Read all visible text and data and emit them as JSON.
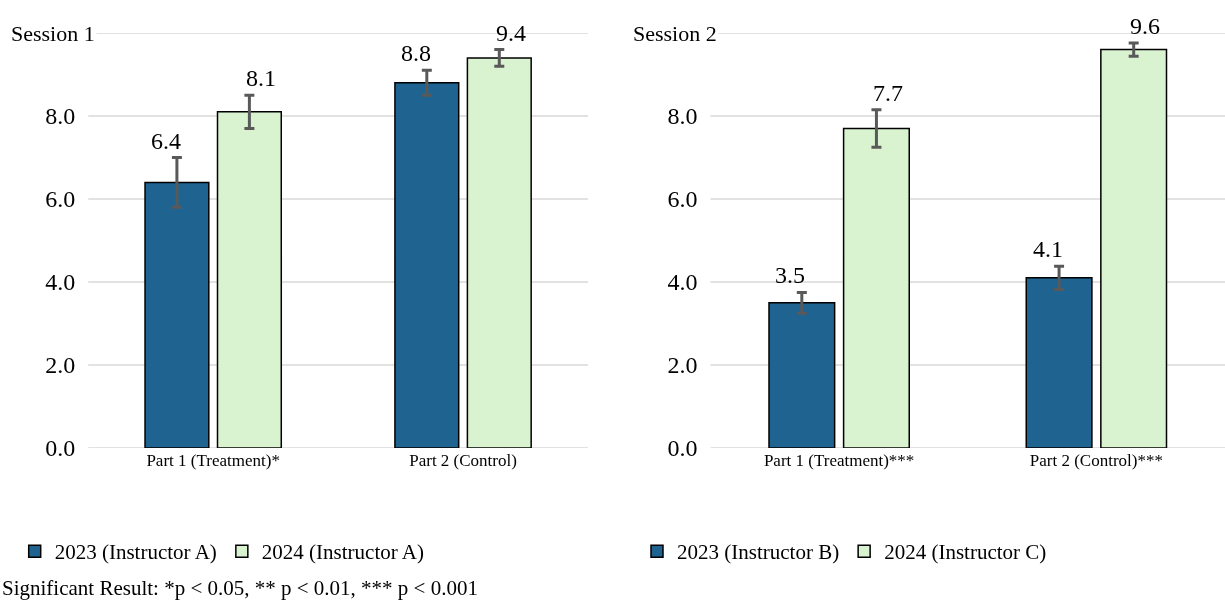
{
  "chart_data": [
    {
      "type": "bar",
      "title": "Session 1",
      "categories": [
        "Part 1 (Treatment)*",
        "Part 2 (Control)"
      ],
      "series": [
        {
          "name": "2023 (Instructor A)",
          "color": "#1f6391",
          "values": [
            6.4,
            8.8
          ],
          "errors": [
            0.6,
            0.3
          ]
        },
        {
          "name": "2024 (Instructor A)",
          "color": "#d9f2d0",
          "values": [
            8.1,
            9.4
          ],
          "errors": [
            0.4,
            0.2
          ]
        }
      ],
      "ylim": [
        0,
        10
      ],
      "yticks": [
        {
          "value": 0,
          "label": "0.0"
        },
        {
          "value": 2,
          "label": "2.0"
        },
        {
          "value": 4,
          "label": "4.0"
        },
        {
          "value": 6,
          "label": "6.0"
        },
        {
          "value": 8,
          "label": "8.0"
        },
        {
          "value": 10,
          "label": null
        }
      ],
      "grid": "y",
      "legend": "bottom",
      "data_labels": true,
      "annotations": [
        "Significant Result: *p < 0.05, ** p < 0.01, *** p < 0.001"
      ]
    },
    {
      "type": "bar",
      "title": "Session 2",
      "categories": [
        "Part 1 (Treatment)***",
        "Part 2 (Control)***"
      ],
      "series": [
        {
          "name": "2023 (Instructor B)",
          "color": "#1f6391",
          "values": [
            3.5,
            4.1
          ],
          "errors": [
            0.25,
            0.28
          ]
        },
        {
          "name": "2024 (Instructor C)",
          "color": "#d9f2d0",
          "values": [
            7.7,
            9.6
          ],
          "errors": [
            0.45,
            0.16
          ]
        }
      ],
      "ylim": [
        0,
        10
      ],
      "yticks": [
        {
          "value": 0,
          "label": "0.0"
        },
        {
          "value": 2,
          "label": "2.0"
        },
        {
          "value": 4,
          "label": "4.0"
        },
        {
          "value": 6,
          "label": "6.0"
        },
        {
          "value": 8,
          "label": "8.0"
        },
        {
          "value": 10,
          "label": null
        }
      ],
      "grid": "y",
      "legend": "bottom",
      "data_labels": true
    }
  ]
}
